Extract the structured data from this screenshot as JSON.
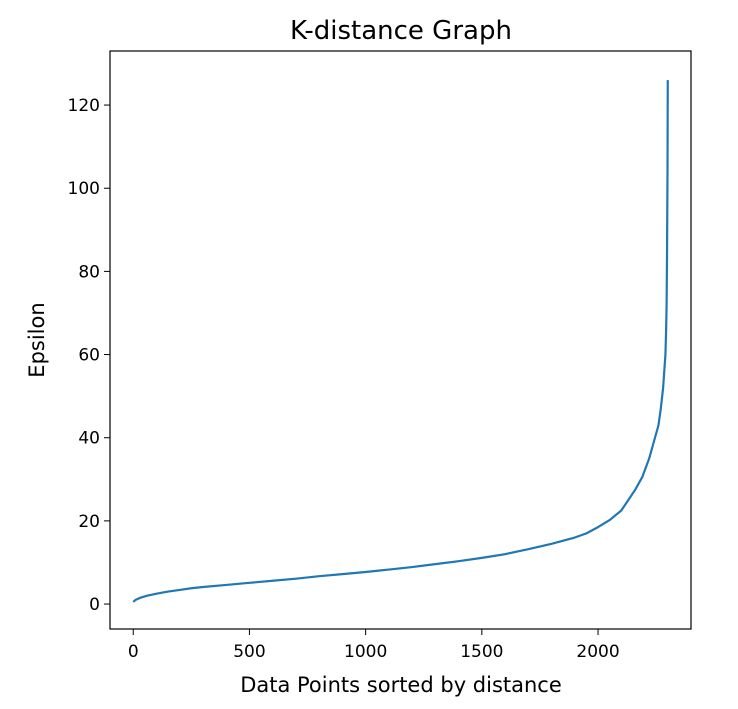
{
  "chart_data": {
    "type": "line",
    "title": "K-distance Graph",
    "xlabel": "Data Points sorted by distance",
    "ylabel": "Epsilon",
    "xlim": [
      -100,
      2400
    ],
    "ylim": [
      -6,
      133
    ],
    "grid": false,
    "x_ticks": [
      0,
      500,
      1000,
      1500,
      2000
    ],
    "y_ticks": [
      0,
      20,
      40,
      60,
      80,
      100,
      120
    ],
    "series": [
      {
        "color": "#1f77b4",
        "x": [
          0,
          10,
          30,
          60,
          100,
          150,
          200,
          250,
          300,
          400,
          500,
          600,
          700,
          800,
          900,
          1000,
          1100,
          1200,
          1300,
          1400,
          1500,
          1600,
          1700,
          1800,
          1900,
          1950,
          2000,
          2050,
          2100,
          2130,
          2160,
          2190,
          2220,
          2240,
          2260,
          2270,
          2280,
          2285,
          2290,
          2293,
          2295,
          2297,
          2299,
          2300
        ],
        "y": [
          0.5,
          1.0,
          1.5,
          2.0,
          2.5,
          3.0,
          3.4,
          3.8,
          4.1,
          4.6,
          5.1,
          5.6,
          6.1,
          6.7,
          7.2,
          7.7,
          8.3,
          8.9,
          9.6,
          10.3,
          11.1,
          12.0,
          13.2,
          14.5,
          16.0,
          17.0,
          18.5,
          20.2,
          22.5,
          25.0,
          27.5,
          30.5,
          35.0,
          39.0,
          43.0,
          47.0,
          52.0,
          56.0,
          60.0,
          66.0,
          72.0,
          85.0,
          105.0,
          126.0
        ]
      }
    ]
  }
}
